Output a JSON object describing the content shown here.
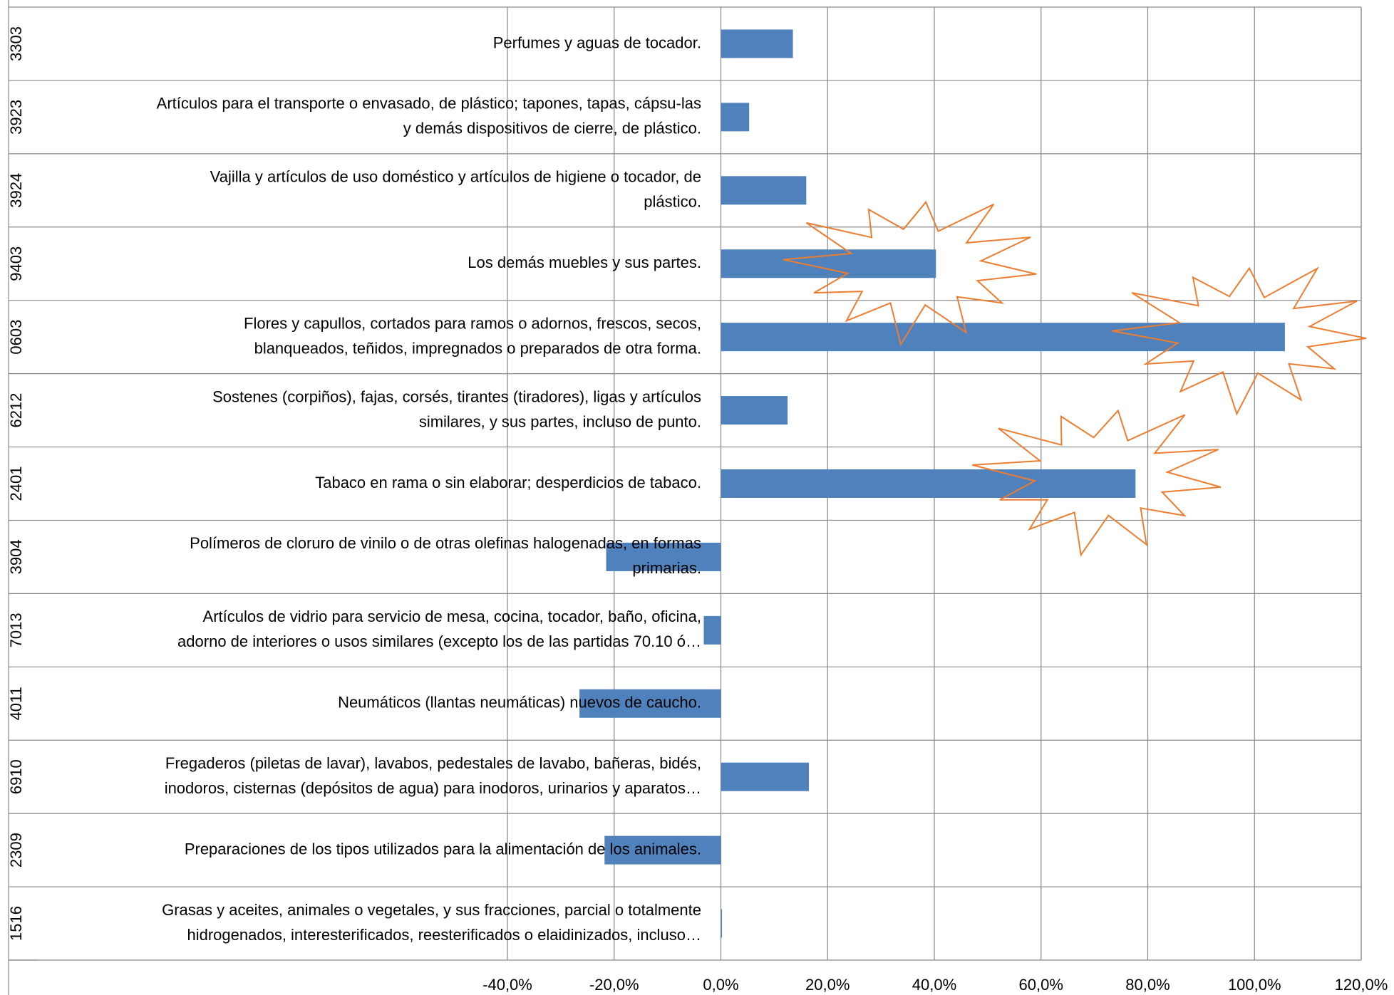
{
  "chart_data": {
    "type": "barh",
    "codes": [
      "3303",
      "3923",
      "3924",
      "9403",
      "0603",
      "6212",
      "2401",
      "3904",
      "7013",
      "4011",
      "6910",
      "2309",
      "1516"
    ],
    "categories": [
      [
        "Perfumes y aguas de tocador."
      ],
      [
        "Artículos para el transporte o envasado, de plástico; tapones, tapas, cápsu-las",
        "y demás dispositivos de cierre, de plástico."
      ],
      [
        "Vajilla y artículos de uso doméstico y artículos de higiene o tocador, de",
        "plástico."
      ],
      [
        "Los demás muebles y sus partes."
      ],
      [
        "Flores y capullos, cortados para ramos o adornos, frescos, secos,",
        "blanqueados, teñidos, impregnados o preparados de otra forma."
      ],
      [
        "Sostenes (corpiños), fajas, corsés, tirantes (tiradores), ligas y artículos",
        "similares, y sus partes, incluso de punto."
      ],
      [
        "Tabaco en rama o sin elaborar; desperdicios de tabaco."
      ],
      [
        "Polímeros de cloruro de vinilo o de otras olefinas halogenadas, en formas",
        "primarias."
      ],
      [
        "Artículos de vidrio para servicio de mesa, cocina, tocador, baño, oficina,",
        "adorno de interiores o usos similares (excepto los de las partidas 70.10 ó…"
      ],
      [
        "Neumáticos (llantas neumáticas) nuevos de caucho."
      ],
      [
        "Fregaderos (piletas de lavar), lavabos, pedestales de lavabo, bañeras, bidés,",
        "inodoros, cisternas (depósitos de agua) para inodoros, urinarios y aparatos…"
      ],
      [
        "Preparaciones de los tipos utilizados para la alimentación de los animales."
      ],
      [
        "Grasas y aceites, animales o vegetales, y sus fracciones, parcial o totalmente",
        "hidrogenados, interesterificados, reesterificados o elaidinizados, incluso…"
      ]
    ],
    "values": [
      13.5,
      5.3,
      16,
      40.3,
      105.7,
      12.5,
      77.7,
      -21.5,
      -3.2,
      -26.5,
      16.5,
      -21.8,
      0.2
    ],
    "color": "#4f81bd",
    "xlim": [
      -40,
      120
    ],
    "xticks": [
      {
        "value": -40,
        "label": "-40,0%"
      },
      {
        "value": -20,
        "label": "-20,0%"
      },
      {
        "value": 0,
        "label": "0,0%"
      },
      {
        "value": 20,
        "label": "20,0%"
      },
      {
        "value": 40,
        "label": "40,0%"
      },
      {
        "value": 60,
        "label": "60,0%"
      },
      {
        "value": 80,
        "label": "80,0%"
      },
      {
        "value": 100,
        "label": "100,0%"
      },
      {
        "value": 120,
        "label": "120,0%"
      }
    ],
    "grid": true
  }
}
